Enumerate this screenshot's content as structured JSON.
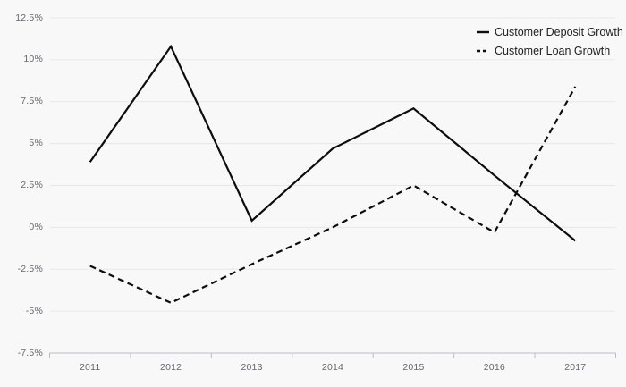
{
  "chart_data": {
    "type": "line",
    "title": "",
    "categories": [
      "2011",
      "2012",
      "2013",
      "2014",
      "2015",
      "2016",
      "2017"
    ],
    "series": [
      {
        "name": "Customer Deposit Growth",
        "style": "solid",
        "values": [
          3.9,
          10.8,
          0.4,
          4.7,
          7.1,
          3.1,
          -0.8
        ]
      },
      {
        "name": "Customer Loan Growth",
        "style": "dashed",
        "values": [
          -2.3,
          -4.5,
          -2.2,
          0.0,
          2.5,
          -0.3,
          8.4
        ]
      }
    ],
    "y_ticks": [
      {
        "label": "12.5%",
        "value": 12.5
      },
      {
        "label": "10%",
        "value": 10
      },
      {
        "label": "7.5%",
        "value": 7.5
      },
      {
        "label": "5%",
        "value": 5
      },
      {
        "label": "2.5%",
        "value": 2.5
      },
      {
        "label": "0%",
        "value": 0
      },
      {
        "label": "-2.5%",
        "value": -2.5
      },
      {
        "label": "-5%",
        "value": -5
      },
      {
        "label": "-7.5%",
        "value": -7.5
      }
    ],
    "ylim": [
      -7.5,
      12.5
    ],
    "xlabel": "",
    "ylabel": "",
    "grid": true,
    "legend_position": "top-right",
    "colors": {
      "line": "#0d0d0d",
      "grid": "#e7e7e7",
      "axis": "#b8bfcb",
      "tick_label": "#66686e",
      "legend_text": "#212121",
      "background": "#f8f8f8"
    }
  }
}
